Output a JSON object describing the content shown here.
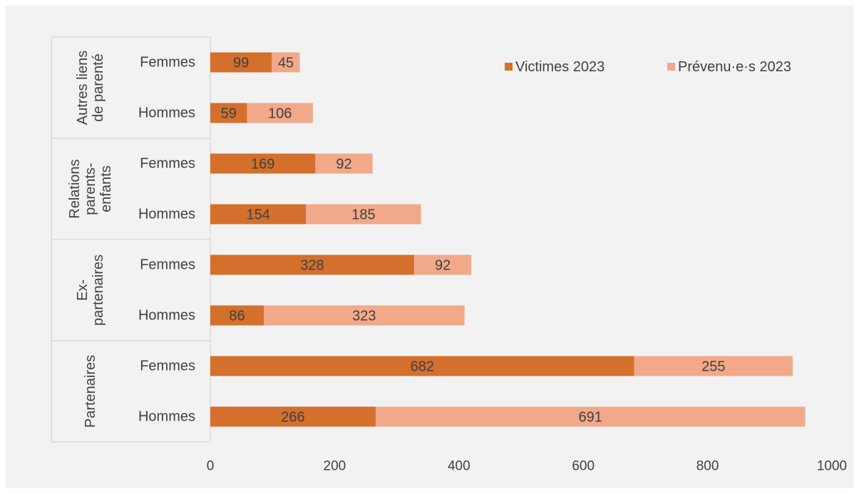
{
  "chart_data": {
    "type": "bar",
    "orientation": "horizontal",
    "stacked": true,
    "title": "",
    "xlabel": "",
    "ylabel": "",
    "xlim": [
      0,
      1000
    ],
    "xticks": [
      0,
      200,
      400,
      600,
      800,
      1000
    ],
    "grid": false,
    "legend_position": "top-right",
    "groups": [
      {
        "lines": [
          "Autres liens",
          "de parenté"
        ],
        "categories": [
          "Femmes",
          "Hommes"
        ]
      },
      {
        "lines": [
          "Relations",
          "parents-",
          "enfants"
        ],
        "categories": [
          "Femmes",
          "Hommes"
        ]
      },
      {
        "lines": [
          "Ex-",
          "partenaires"
        ],
        "categories": [
          "Femmes",
          "Hommes"
        ]
      },
      {
        "lines": [
          "Partenaires"
        ],
        "categories": [
          "Femmes",
          "Hommes"
        ]
      }
    ],
    "series": [
      {
        "name": "Victimes  2023",
        "color": "#d46f2c",
        "values": [
          99,
          59,
          169,
          154,
          328,
          86,
          682,
          266
        ]
      },
      {
        "name": "Prévenu·e·s 2023",
        "color": "#f2a98a",
        "values": [
          45,
          106,
          92,
          185,
          92,
          323,
          255,
          691
        ]
      }
    ]
  }
}
